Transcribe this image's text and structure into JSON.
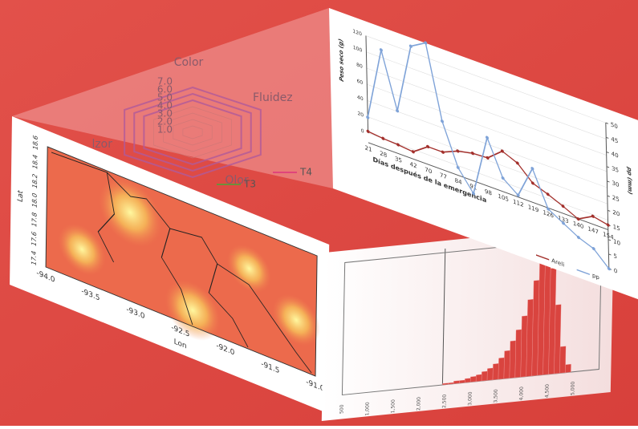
{
  "line_panel": {
    "y_label": "Peso seco (g)",
    "y2_label": "pp (mm)",
    "x_label": "Días después de la emergencia",
    "categories": [
      21,
      28,
      35,
      42,
      70,
      77,
      84,
      91,
      98,
      105,
      112,
      119,
      126,
      133,
      140,
      147,
      154
    ],
    "ylim": [
      -60,
      120
    ],
    "yticks": [
      0,
      20,
      40,
      60,
      80,
      100,
      120
    ],
    "y2lim": [
      0,
      50
    ],
    "y2ticks": [
      0,
      5,
      10,
      15,
      20,
      25,
      30,
      35,
      40,
      45,
      50
    ],
    "series": [
      {
        "name": "Areli",
        "color": "#a3302c",
        "values": [
          2,
          0,
          -1,
          -3,
          10,
          10,
          18,
          22,
          23,
          38,
          30,
          12,
          5,
          -3,
          -12,
          -2,
          -6
        ]
      },
      {
        "name": "pp",
        "color": "#7fa3d8",
        "axis": "y2",
        "values": [
          22,
          47,
          28,
          52,
          55,
          30,
          16,
          9,
          30,
          18,
          14,
          25,
          13,
          10,
          7,
          5,
          0
        ]
      }
    ]
  },
  "radar_panel": {
    "axis_labels": [
      "Color",
      "Fluidez",
      "Olor",
      "lzor"
    ],
    "ticks": [
      "7.0",
      "6.0",
      "5.0",
      "4.0",
      "3.0",
      "2.0",
      "1.0"
    ],
    "legend": [
      {
        "name": "T3",
        "color": "#6d8f3a"
      },
      {
        "name": "T4",
        "color": "#e0457b"
      }
    ]
  },
  "map_panel": {
    "x_label": "Lon",
    "y_label": "Lat",
    "xticks": [
      "-94.0",
      "-93.5",
      "-93.0",
      "-92.5",
      "-92.0",
      "-91.5",
      "-91.0"
    ],
    "yticks": [
      "17.4",
      "17.6",
      "17.8",
      "18.0",
      "18.2",
      "18.4",
      "18.6"
    ]
  },
  "hist_panel": {
    "xticks": [
      "500",
      "1,000",
      "1,500",
      "2,000",
      "2,500",
      "3,000",
      "3,500",
      "4,000",
      "4,500",
      "5,000"
    ],
    "bars": [
      1,
      1,
      2,
      2,
      3,
      4,
      5,
      7,
      9,
      12,
      16,
      21,
      28,
      36,
      46,
      58,
      72,
      86,
      95,
      80,
      52,
      20,
      6
    ]
  }
}
